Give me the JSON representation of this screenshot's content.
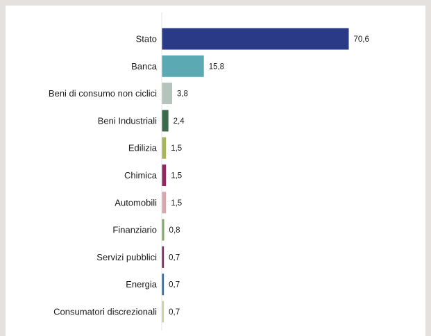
{
  "chart_data": {
    "type": "bar",
    "orientation": "horizontal",
    "categories": [
      "Stato",
      "Banca",
      "Beni di consumo non ciclici",
      "Beni Industriali",
      "Edilizia",
      "Chimica",
      "Automobili",
      "Finanziario",
      "Servizi pubblici",
      "Energia",
      "Consumatori discrezionali"
    ],
    "values": [
      70.6,
      15.8,
      3.8,
      2.4,
      1.5,
      1.5,
      1.5,
      0.8,
      0.7,
      0.7,
      0.7
    ],
    "value_labels": [
      "70,6",
      "15,8",
      "3,8",
      "2,4",
      "1,5",
      "1,5",
      "1,5",
      "0,8",
      "0,7",
      "0,7",
      "0,7"
    ],
    "colors": [
      "#2b3a86",
      "#5ba9b2",
      "#b5c3bd",
      "#3c6a4a",
      "#a9b55e",
      "#8f2b5f",
      "#d3a9ad",
      "#7fa86a",
      "#77295f",
      "#2a6f9e",
      "#c9d0a4"
    ],
    "xlim": [
      0,
      70.6
    ],
    "grid": false,
    "title": "",
    "xlabel": "",
    "ylabel": ""
  }
}
